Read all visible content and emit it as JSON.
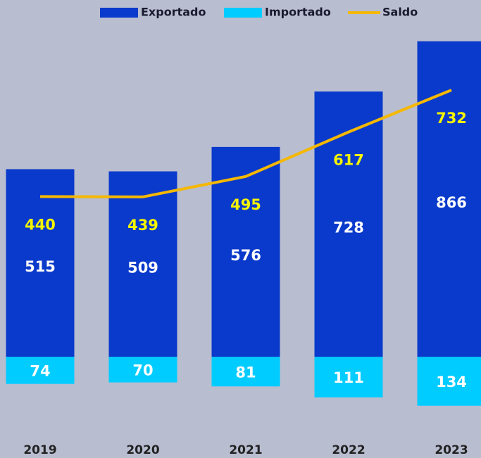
{
  "chart_data": {
    "type": "bar",
    "categories": [
      "2019",
      "2020",
      "2021",
      "2022",
      "2023"
    ],
    "series": [
      {
        "name": "Exportado",
        "type": "bar",
        "direction": "up",
        "color": "#0a3acb",
        "label_color": "#ffffff",
        "values": [
          515,
          509,
          576,
          728,
          866
        ]
      },
      {
        "name": "Importado",
        "type": "bar",
        "direction": "down",
        "color": "#00ccff",
        "label_color": "#ffffff",
        "values": [
          74,
          70,
          81,
          111,
          134
        ]
      },
      {
        "name": "Saldo",
        "type": "line",
        "color": "#f5b800",
        "label_color": "#f5f500",
        "values": [
          440,
          439,
          495,
          617,
          732
        ]
      }
    ],
    "ylim": [
      -150,
      900
    ],
    "legend": "top",
    "grid": false
  }
}
